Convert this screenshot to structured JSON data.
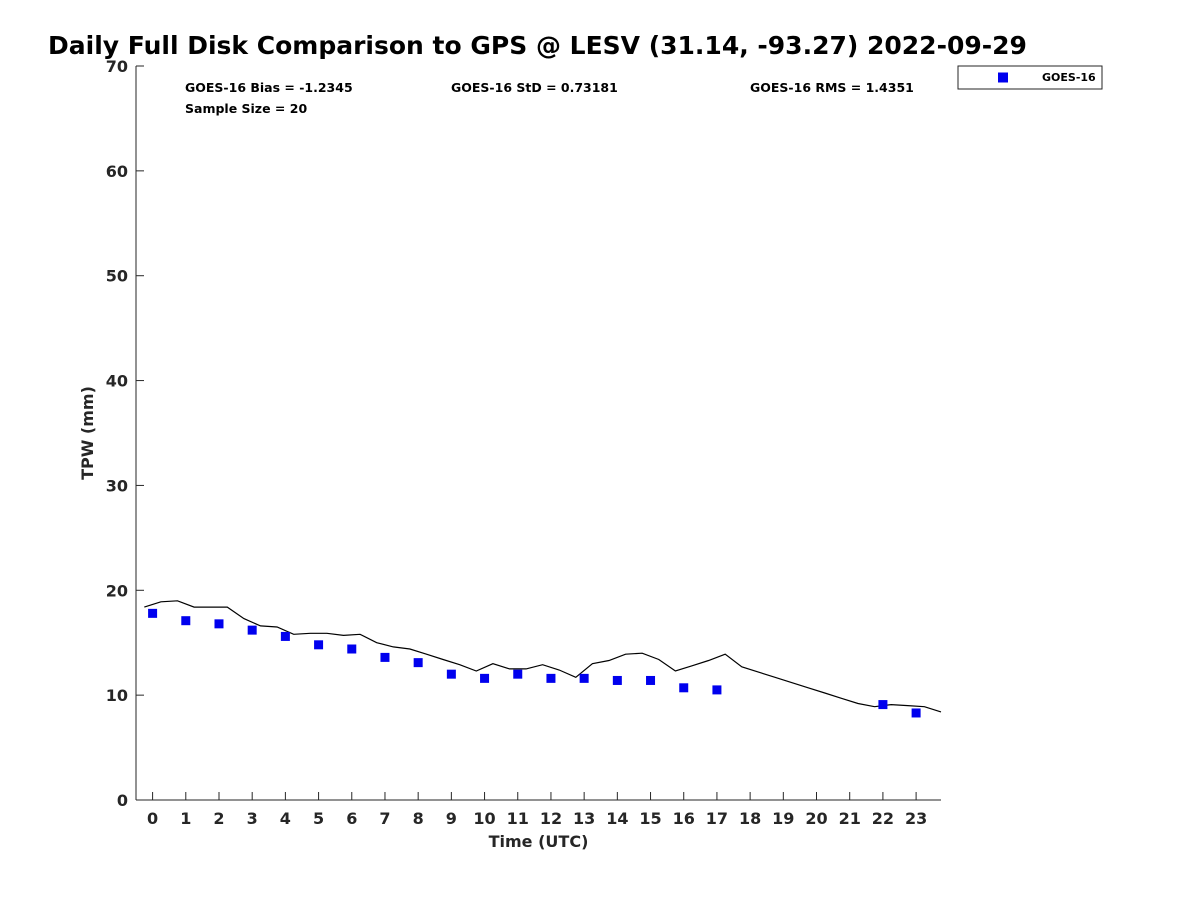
{
  "chart_data": {
    "type": "scatter",
    "title": "Daily Full Disk Comparison to GPS @ LESV (31.14, -93.27) 2022-09-29",
    "xlabel": "Time (UTC)",
    "ylabel": "TPW (mm)",
    "xlim": [
      -0.5,
      23.75
    ],
    "ylim": [
      0,
      70
    ],
    "xticks": [
      0,
      1,
      2,
      3,
      4,
      5,
      6,
      7,
      8,
      9,
      10,
      11,
      12,
      13,
      14,
      15,
      16,
      17,
      18,
      19,
      20,
      21,
      22,
      23
    ],
    "yticks": [
      0,
      10,
      20,
      30,
      40,
      50,
      60,
      70
    ],
    "grid": false,
    "legend_position": "top-right",
    "series": [
      {
        "name": "GOES-16",
        "marker": "square",
        "color": "#0000ee",
        "x": [
          0,
          1,
          2,
          3,
          4,
          5,
          6,
          7,
          8,
          9,
          10,
          11,
          12,
          13,
          14,
          15,
          16,
          17,
          22,
          23
        ],
        "y": [
          17.8,
          17.1,
          16.8,
          16.2,
          15.6,
          14.8,
          14.4,
          13.6,
          13.1,
          12.0,
          11.6,
          12.0,
          11.6,
          11.6,
          11.4,
          11.4,
          10.7,
          10.5,
          9.1,
          8.3
        ]
      },
      {
        "name": "",
        "marker": "line",
        "color": "#000000",
        "x": [
          -0.25,
          0.25,
          0.75,
          1.25,
          1.75,
          2.25,
          2.75,
          3.25,
          3.75,
          4.25,
          4.75,
          5.25,
          5.75,
          6.25,
          6.75,
          7.25,
          7.75,
          8.25,
          8.75,
          9.25,
          9.75,
          10.25,
          10.75,
          11.25,
          11.75,
          12.25,
          12.75,
          13.25,
          13.75,
          14.25,
          14.75,
          15.25,
          15.75,
          16.25,
          16.75,
          17.25,
          17.75,
          18.25,
          18.75,
          19.25,
          19.75,
          20.25,
          20.75,
          21.25,
          21.75,
          22.25,
          22.75,
          23.25,
          23.75
        ],
        "y": [
          18.4,
          18.9,
          19.0,
          18.4,
          18.4,
          18.4,
          17.3,
          16.6,
          16.5,
          15.8,
          15.9,
          15.9,
          15.7,
          15.8,
          15.0,
          14.6,
          14.4,
          13.9,
          13.4,
          12.9,
          12.3,
          13.0,
          12.5,
          12.5,
          12.9,
          12.4,
          11.7,
          13.0,
          13.3,
          13.9,
          14.0,
          13.4,
          12.3,
          12.8,
          13.3,
          13.9,
          12.7,
          12.2,
          11.7,
          11.2,
          10.7,
          10.2,
          9.7,
          9.2,
          8.9,
          9.1,
          9.0,
          8.9,
          8.4
        ]
      }
    ],
    "annotations": {
      "bias": "GOES-16 Bias = -1.2345",
      "std": "GOES-16 StD = 0.73181",
      "rms": "GOES-16 RMS = 1.4351",
      "sample": "Sample Size = 20"
    },
    "legend": {
      "label": "GOES-16"
    }
  }
}
